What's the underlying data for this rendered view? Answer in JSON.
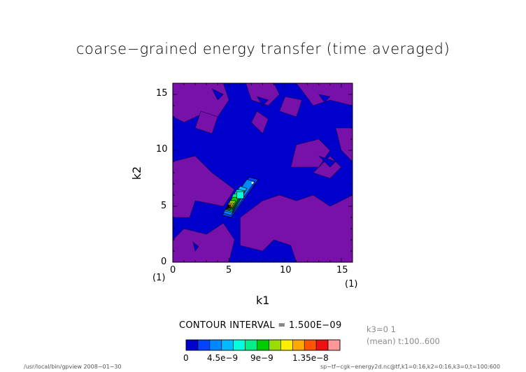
{
  "title": "coarse−grained energy transfer (time averaged)",
  "meta": {
    "k3": "k3=0 1",
    "time": "(mean) t:100..600"
  },
  "contour_interval": "CONTOUR INTERVAL = 1.500E−09",
  "colorbar": {
    "ticks": [
      "0",
      "4.5e−9",
      "9e−9",
      "1.35e−8"
    ],
    "levels": [
      0,
      1.5e-09,
      3e-09,
      4.5e-09,
      6e-09,
      7.5e-09,
      9e-09,
      1.05e-08,
      1.2e-08,
      1.35e-08,
      1.5e-08,
      1.65e-08
    ],
    "colors": [
      "#0000cc",
      "#0044ff",
      "#0088ff",
      "#00bbff",
      "#00ffdd",
      "#00ee88",
      "#00cc00",
      "#99dd00",
      "#ffee00",
      "#ffaa00",
      "#ff5500",
      "#ee1111",
      "#ff9999"
    ]
  },
  "footer": {
    "left": "/usr/local/bin/gpview   2008−01−30",
    "right": "sp−tf−cgk−energy2d.nc@tf,k1=0:16,k2=0:16,k3=0,t=100:600"
  },
  "chart_data": {
    "type": "heatmap",
    "title": "coarse−grained energy transfer (time averaged)",
    "xlabel": "k1",
    "ylabel": "k2",
    "xlim": [
      0,
      16
    ],
    "ylim": [
      0,
      16
    ],
    "x_ticks": [
      "0",
      "5",
      "10",
      "15"
    ],
    "y_ticks": [
      "0",
      "5",
      "10",
      "15"
    ],
    "x_index_label": "(1)",
    "y_index_label": "(1)",
    "background_colors": {
      "low": "#0000cc",
      "band": "#7711aa"
    },
    "purple_regions": [
      [
        [
          0,
          16
        ],
        [
          4.5,
          16
        ],
        [
          5,
          14.5
        ],
        [
          4,
          13
        ],
        [
          2.5,
          13.2
        ],
        [
          1,
          12.5
        ],
        [
          0,
          13
        ]
      ],
      [
        [
          6.5,
          16
        ],
        [
          9,
          16
        ],
        [
          9.5,
          15
        ],
        [
          8.5,
          14
        ],
        [
          7,
          14.5
        ]
      ],
      [
        [
          11,
          16
        ],
        [
          16,
          16
        ],
        [
          16,
          14
        ],
        [
          14,
          14.5
        ],
        [
          12.5,
          14
        ]
      ],
      [
        [
          9.5,
          13.5
        ],
        [
          11,
          13
        ],
        [
          11.5,
          14.5
        ],
        [
          10,
          14.8
        ]
      ],
      [
        [
          14.5,
          12
        ],
        [
          16,
          12
        ],
        [
          16,
          9
        ],
        [
          15,
          10
        ]
      ],
      [
        [
          2.5,
          13.5
        ],
        [
          4,
          13
        ],
        [
          3.5,
          11.5
        ],
        [
          2,
          12
        ]
      ],
      [
        [
          0,
          9
        ],
        [
          2,
          9.5
        ],
        [
          3.5,
          8
        ],
        [
          5.5,
          6.5
        ],
        [
          4.5,
          5
        ],
        [
          2,
          5.5
        ],
        [
          1.5,
          4
        ],
        [
          0,
          4
        ]
      ],
      [
        [
          7,
          12.5
        ],
        [
          8,
          11.5
        ],
        [
          8.5,
          12.8
        ],
        [
          7.5,
          13.5
        ]
      ],
      [
        [
          10.5,
          8.5
        ],
        [
          13,
          8.5
        ],
        [
          14,
          10
        ],
        [
          13,
          11
        ],
        [
          11,
          10.5
        ]
      ],
      [
        [
          6,
          4
        ],
        [
          8,
          5.5
        ],
        [
          9.5,
          6
        ],
        [
          11,
          5.5
        ],
        [
          12.5,
          6
        ],
        [
          14,
          5
        ],
        [
          16,
          6
        ],
        [
          16,
          0
        ],
        [
          11,
          0
        ],
        [
          10.5,
          1.5
        ],
        [
          9,
          2
        ],
        [
          8,
          1
        ],
        [
          6,
          1.5
        ]
      ],
      [
        [
          0,
          2
        ],
        [
          1,
          3
        ],
        [
          3,
          2.5
        ],
        [
          4.5,
          3.5
        ],
        [
          5.5,
          2
        ],
        [
          5,
          0
        ],
        [
          0,
          0
        ]
      ],
      [
        [
          12.5,
          8
        ],
        [
          14,
          7.5
        ],
        [
          15,
          8.5
        ],
        [
          14,
          9.5
        ]
      ]
    ],
    "blue_islands_in_purple": [
      [
        [
          3.5,
          15.5
        ],
        [
          4.5,
          15
        ],
        [
          4,
          14.5
        ]
      ],
      [
        [
          7.5,
          14.8
        ],
        [
          8.5,
          14.5
        ],
        [
          8,
          14
        ]
      ],
      [
        [
          13,
          15
        ],
        [
          14,
          14.8
        ],
        [
          13.5,
          14.3
        ]
      ],
      [
        [
          13,
          9.5
        ],
        [
          14.5,
          9
        ],
        [
          14,
          8.5
        ]
      ],
      [
        [
          1.8,
          1.8
        ],
        [
          2.3,
          1.4
        ],
        [
          2,
          1
        ]
      ]
    ],
    "peak": {
      "x": 5,
      "y": 5,
      "value": 1.65e-08
    },
    "contours": [
      {
        "value": 1.5e-09,
        "color": "#0044ff",
        "points": [
          [
            4.4,
            4.2
          ],
          [
            6.8,
            7.6
          ],
          [
            7.6,
            7.4
          ],
          [
            5.2,
            4.0
          ]
        ]
      },
      {
        "value": 3e-09,
        "color": "#0088ff",
        "points": [
          [
            4.5,
            4.4
          ],
          [
            6.6,
            7.4
          ],
          [
            7.3,
            7.2
          ],
          [
            5.2,
            4.2
          ]
        ]
      },
      {
        "value": 4.5e-09,
        "color": "#00bbff",
        "points": [
          [
            4.6,
            4.6
          ],
          [
            6.0,
            6.8
          ],
          [
            6.6,
            6.6
          ],
          [
            5.3,
            4.4
          ]
        ]
      },
      {
        "value": 6e-09,
        "color": "#00ffdd",
        "points": [
          [
            4.7,
            4.7
          ],
          [
            5.7,
            6.5
          ],
          [
            6.4,
            6.4
          ],
          [
            5.3,
            4.5
          ]
        ]
      },
      {
        "value": 7.5e-09,
        "color": "#00ee88",
        "points": [
          [
            4.75,
            4.7
          ],
          [
            5.4,
            6.1
          ],
          [
            6.2,
            6.2
          ],
          [
            5.3,
            4.6
          ]
        ]
      },
      {
        "value": 9e-09,
        "color": "#00cc00",
        "points": [
          [
            4.8,
            4.75
          ],
          [
            5.3,
            5.8
          ],
          [
            5.9,
            5.8
          ],
          [
            5.3,
            4.7
          ]
        ]
      },
      {
        "value": 1.05e-08,
        "color": "#99dd00",
        "points": [
          [
            4.85,
            4.8
          ],
          [
            5.1,
            5.5
          ],
          [
            5.6,
            5.5
          ],
          [
            5.3,
            4.8
          ]
        ]
      },
      {
        "value": 1.2e-08,
        "color": "#ffee00",
        "points": [
          [
            4.88,
            4.85
          ],
          [
            4.95,
            5.3
          ],
          [
            5.4,
            5.3
          ],
          [
            5.25,
            4.85
          ]
        ]
      },
      {
        "value": 1.35e-08,
        "color": "#ffaa00",
        "points": [
          [
            4.9,
            4.88
          ],
          [
            4.93,
            5.2
          ],
          [
            5.25,
            5.2
          ],
          [
            5.2,
            4.88
          ]
        ]
      },
      {
        "value": 1.5e-08,
        "color": "#ff5500",
        "points": [
          [
            4.92,
            4.92
          ],
          [
            4.94,
            5.12
          ],
          [
            5.14,
            5.12
          ],
          [
            5.12,
            4.92
          ]
        ]
      },
      {
        "value": 1.65e-08,
        "color": "#ee1111",
        "points": [
          [
            4.96,
            4.96
          ],
          [
            4.97,
            5.06
          ],
          [
            5.06,
            5.06
          ],
          [
            5.05,
            4.96
          ]
        ]
      }
    ],
    "secondary_maximum": {
      "x": 6,
      "y": 6,
      "contour_values": [
        4.5e-09,
        6e-09
      ]
    }
  }
}
